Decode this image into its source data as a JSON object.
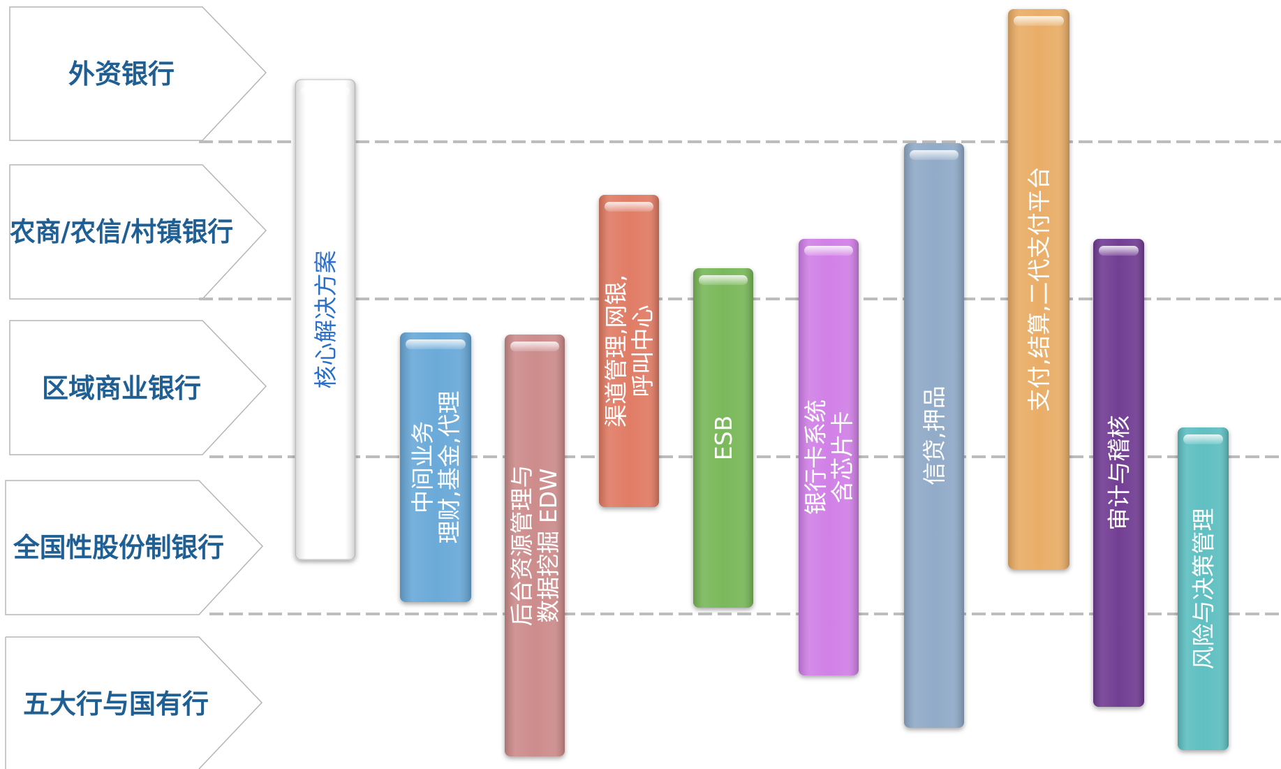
{
  "tiers": [
    {
      "label": "外资银行"
    },
    {
      "label": "农商/农信/村镇银行"
    },
    {
      "label": "区域商业银行"
    },
    {
      "label": "全国性股份制银行"
    },
    {
      "label": "五大行与国有行"
    }
  ],
  "bars": [
    {
      "lines": [
        "核心解决方案"
      ],
      "color": "#ffffff",
      "text_color": "#2a6fc9"
    },
    {
      "lines": [
        "中间业务",
        "理财,基金,代理"
      ],
      "color": "#67a8d8",
      "text_color": "#ffffff"
    },
    {
      "lines": [
        "后台资源管理与",
        "数据挖掘 EDW"
      ],
      "color": "#cc8a8a",
      "text_color": "#ffffff"
    },
    {
      "lines": [
        "渠道管理,网银,",
        "呼叫中心"
      ],
      "color": "#e07a64",
      "text_color": "#ffffff"
    },
    {
      "lines": [
        "ESB"
      ],
      "color": "#78b758",
      "text_color": "#ffffff"
    },
    {
      "lines": [
        "银行卡系统",
        "含芯片卡"
      ],
      "color": "#d07ee6",
      "text_color": "#ffffff"
    },
    {
      "lines": [
        "信贷,押品"
      ],
      "color": "#8fa9c7",
      "text_color": "#ffffff"
    },
    {
      "lines": [
        "支付,结算,二代支付平台"
      ],
      "color": "#e9ac65",
      "text_color": "#ffffff"
    },
    {
      "lines": [
        "审计与稽核"
      ],
      "color": "#6f3a92",
      "text_color": "#ffffff"
    },
    {
      "lines": [
        "风险与决策管理"
      ],
      "color": "#5bbec0",
      "text_color": "#ffffff"
    }
  ]
}
